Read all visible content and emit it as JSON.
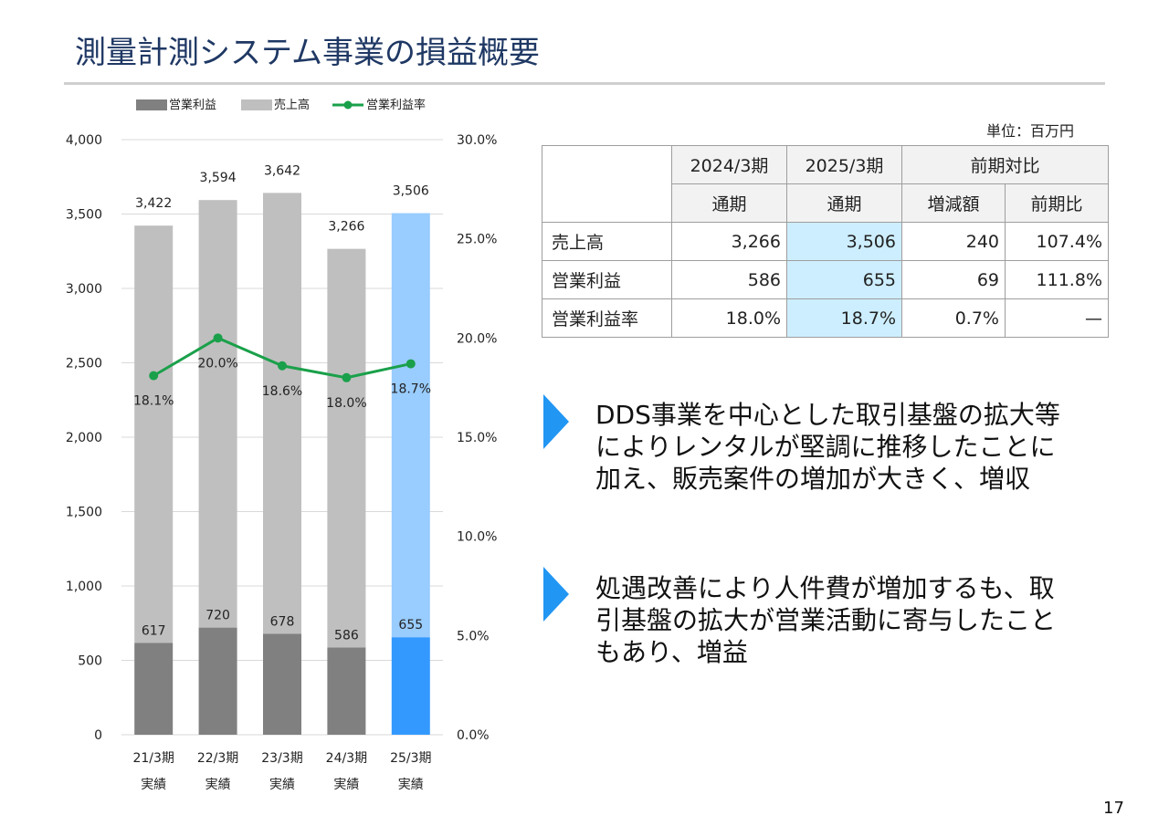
{
  "page": {
    "title": "測量計測システム事業の損益概要",
    "page_number": "17"
  },
  "legend": {
    "op_profit": "営業利益",
    "sales": "売上高",
    "margin": "営業利益率"
  },
  "unit_label": "単位：百万円",
  "colors": {
    "title": "#1f3864",
    "op_profit": "#808080",
    "sales": "#bfbfbf",
    "op_profit_current": "#3399ff",
    "sales_current": "#99ccff",
    "margin_line": "#1aa04a",
    "bullet": "#2196f3",
    "highlight": "#cdeeff"
  },
  "chart_data": {
    "type": "bar",
    "stacked": true,
    "categories": [
      "21/3期",
      "22/3期",
      "23/3期",
      "24/3期",
      "25/3期"
    ],
    "category_sublabels": [
      "実績",
      "実績",
      "実績",
      "実績",
      "実績"
    ],
    "series": [
      {
        "name": "営業利益",
        "values": [
          617,
          720,
          678,
          586,
          655
        ]
      },
      {
        "name": "売上高",
        "values": [
          3422,
          3594,
          3642,
          3266,
          3506
        ]
      },
      {
        "name": "営業利益率",
        "type": "line",
        "axis": "right",
        "values": [
          18.1,
          20.0,
          18.6,
          18.0,
          18.7
        ],
        "labels": [
          "18.1%",
          "20.0%",
          "18.6%",
          "18.0%",
          "18.7%"
        ]
      }
    ],
    "sales_labels": [
      "3,422",
      "3,594",
      "3,642",
      "3,266",
      "3,506"
    ],
    "profit_labels": [
      "617",
      "720",
      "678",
      "586",
      "655"
    ],
    "ylim": [
      0,
      4000
    ],
    "yticks": [
      0,
      500,
      1000,
      1500,
      2000,
      2500,
      3000,
      3500,
      4000
    ],
    "ytick_labels": [
      "0",
      "500",
      "1,000",
      "1,500",
      "2,000",
      "2,500",
      "3,000",
      "3,500",
      "4,000"
    ],
    "y2lim": [
      0,
      30
    ],
    "y2ticks": [
      0,
      5,
      10,
      15,
      20,
      25,
      30
    ],
    "y2tick_labels": [
      "0.0%",
      "5.0%",
      "10.0%",
      "15.0%",
      "20.0%",
      "25.0%",
      "30.0%"
    ],
    "grid": true,
    "legend_position": "top-left",
    "highlight_last": true
  },
  "table": {
    "header_periods": [
      "2024/3期",
      "2025/3期",
      "前期対比"
    ],
    "header_sub": [
      "通期",
      "通期",
      "増減額",
      "前期比"
    ],
    "rows": [
      {
        "label": "売上高",
        "prev": "3,266",
        "curr": "3,506",
        "diff": "240",
        "ratio": "107.4%"
      },
      {
        "label": "営業利益",
        "prev": "586",
        "curr": "655",
        "diff": "69",
        "ratio": "111.8%"
      },
      {
        "label": "営業利益率",
        "prev": "18.0%",
        "curr": "18.7%",
        "diff": "0.7%",
        "ratio": "—"
      }
    ]
  },
  "bullets": [
    {
      "icon": "triangle-bullet-icon",
      "text_lines": [
        "DDS事業を中心とした取引基盤の拡大等",
        "によりレンタルが堅調に推移したことに",
        "加え、販売案件の増加が大きく、増収"
      ]
    },
    {
      "icon": "triangle-bullet-icon",
      "text_lines": [
        "処遇改善により人件費が増加するも、取",
        "引基盤の拡大が営業活動に寄与したこと",
        "もあり、増益"
      ]
    }
  ]
}
